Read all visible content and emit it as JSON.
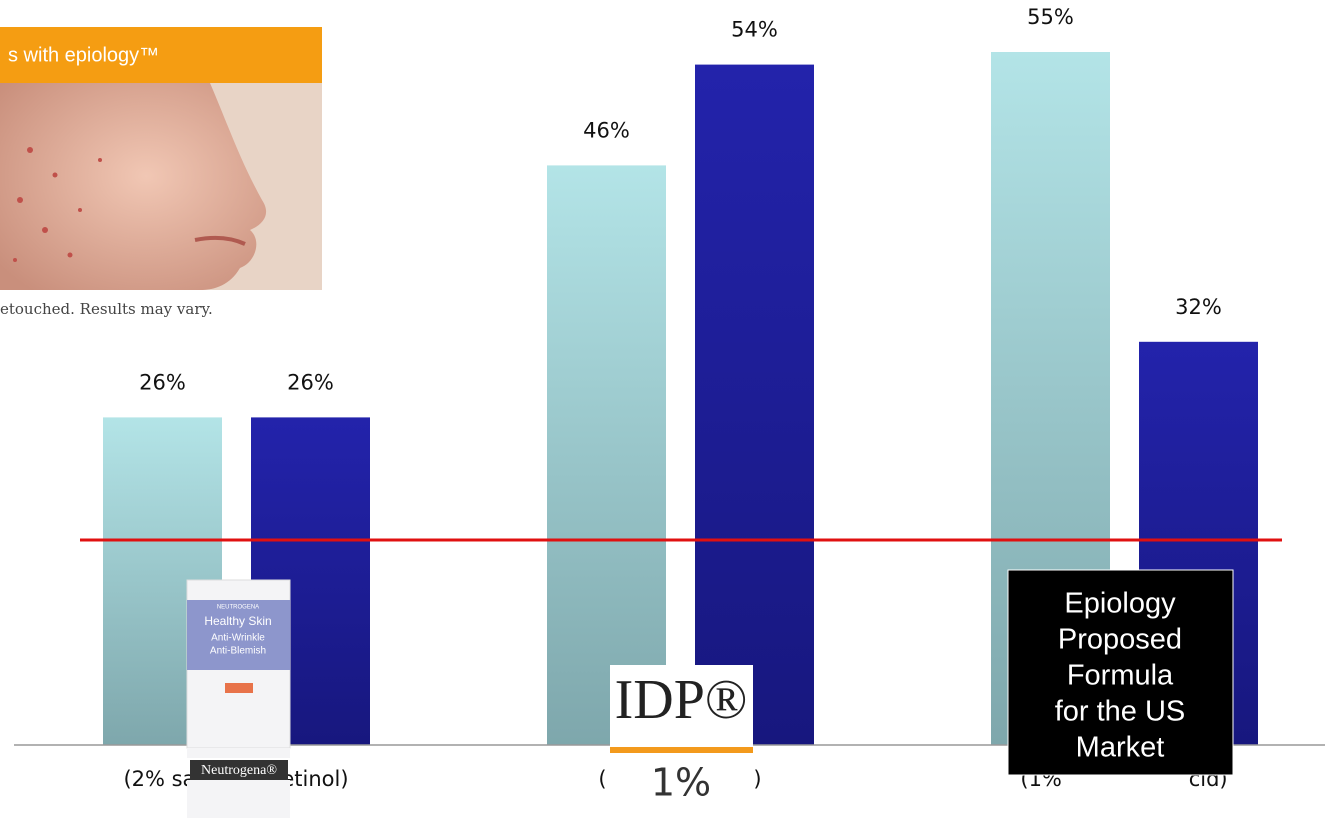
{
  "chart_data": {
    "type": "bar",
    "categories": [
      "(2% sal            etinol)",
      "(                      )",
      "(1%                   cid)"
    ],
    "series": [
      {
        "color": "#a9dde1",
        "values": [
          26,
          46,
          55
        ],
        "value_labels": [
          "26%",
          "46%",
          "55%"
        ]
      },
      {
        "color": "#1e1e9e",
        "values": [
          26,
          54,
          32
        ],
        "value_labels": [
          "26%",
          "54%",
          "32%"
        ]
      }
    ],
    "ylim": [
      0,
      60
    ],
    "overlays": {
      "photo": {
        "banner": "s with epiology™",
        "caption": "etouched. Results may vary."
      },
      "product": {
        "brand_top": "NEUTROGENA",
        "line1": "Healthy Skin",
        "line2": "Anti-Wrinkle",
        "line3": "Anti-Blemish",
        "brand": "Neutrogena®"
      },
      "logo": {
        "name": "IDP®",
        "dose": "1%"
      },
      "callout": [
        "Epiology",
        "Proposed",
        "Formula",
        "for the US",
        "Market"
      ]
    }
  }
}
